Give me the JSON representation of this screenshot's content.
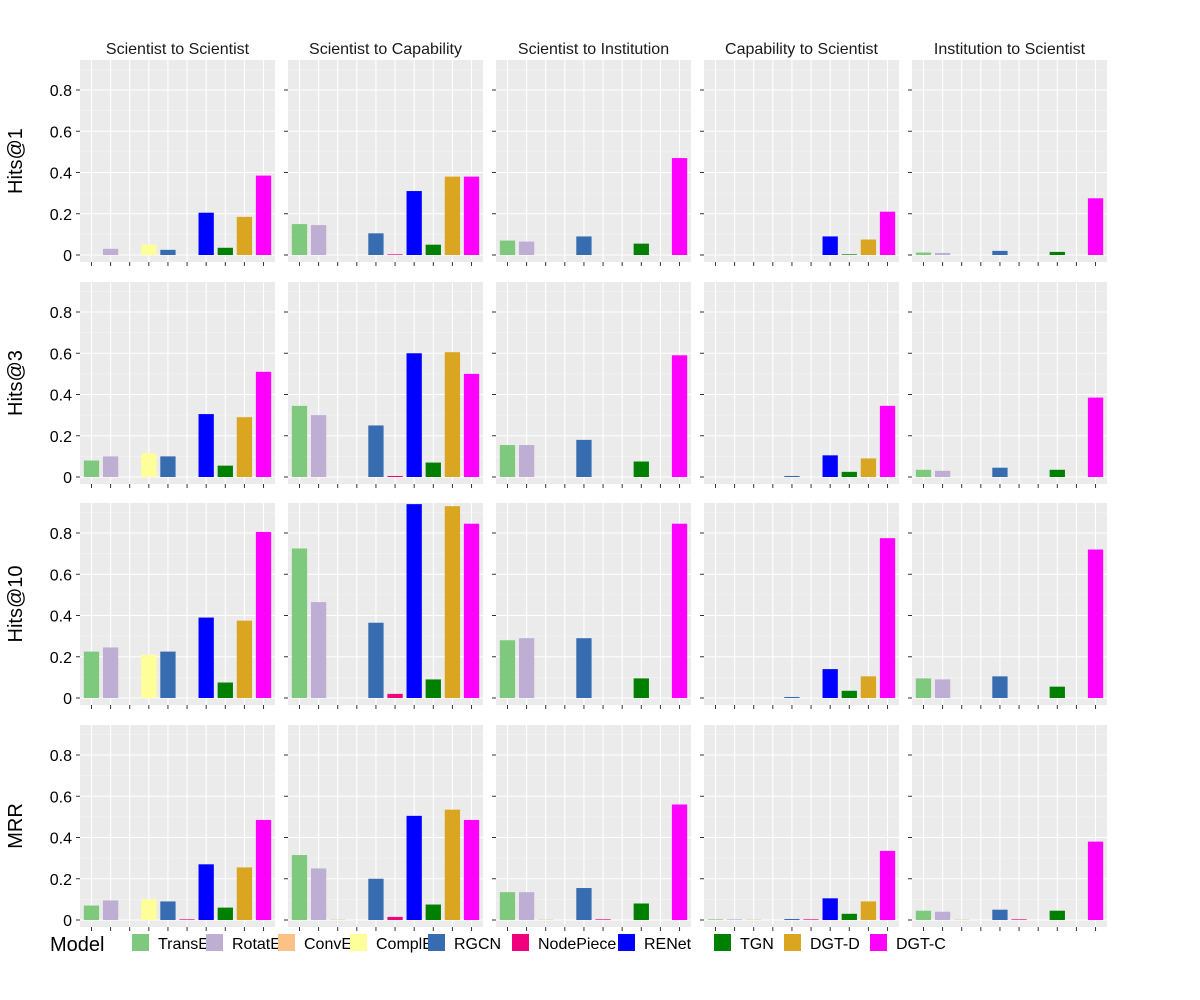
{
  "chart_data": {
    "type": "bar",
    "facet_columns": [
      "Scientist to Scientist",
      "Scientist to Capability",
      "Scientist to Institution",
      "Capability to Scientist",
      "Institution to Scientist"
    ],
    "facet_rows": [
      "Hits@1",
      "Hits@3",
      "Hits@10",
      "MRR"
    ],
    "categories": [
      "TransE",
      "RotatE",
      "ConvE",
      "ComplEx",
      "RGCN",
      "NodePiece",
      "RENet",
      "TGN",
      "DGT-D",
      "DGT-C"
    ],
    "colors": [
      "#7fc97f",
      "#beaed4",
      "#fdc086",
      "#ffff99",
      "#386cb0",
      "#f0027f",
      "#0000ff",
      "#008000",
      "#daa520",
      "#ff00ff"
    ],
    "ylim": [
      0,
      0.945
    ],
    "yticks": [
      "0",
      "0.2",
      "0.4",
      "0.6",
      "0.8"
    ],
    "grid": true,
    "legend": {
      "title": "Model",
      "position": "bottom"
    },
    "values": {
      "Hits@1": [
        [
          0,
          0.03,
          0,
          0.05,
          0.025,
          0,
          0.205,
          0.035,
          0.185,
          0.385
        ],
        [
          0.15,
          0.145,
          0,
          0,
          0.105,
          0.003,
          0.31,
          0.05,
          0.38,
          0.38
        ],
        [
          0.07,
          0.065,
          0,
          0,
          0.09,
          0,
          0,
          0.055,
          0,
          0.47
        ],
        [
          0,
          0,
          0,
          0,
          0,
          0,
          0.09,
          0.003,
          0.075,
          0.21
        ],
        [
          0.012,
          0.01,
          0,
          0,
          0.02,
          0,
          0,
          0.015,
          0,
          0.275
        ]
      ],
      "Hits@3": [
        [
          0.08,
          0.1,
          0,
          0.115,
          0.1,
          0,
          0.305,
          0.055,
          0.29,
          0.51
        ],
        [
          0.345,
          0.3,
          0,
          0,
          0.25,
          0.005,
          0.6,
          0.07,
          0.605,
          0.5
        ],
        [
          0.155,
          0.155,
          0,
          0,
          0.18,
          0,
          0,
          0.075,
          0,
          0.59
        ],
        [
          0,
          0,
          0,
          0,
          0.005,
          0,
          0.105,
          0.025,
          0.09,
          0.345
        ],
        [
          0.035,
          0.03,
          0,
          0,
          0.045,
          0,
          0,
          0.035,
          0,
          0.385
        ]
      ],
      "Hits@10": [
        [
          0.225,
          0.245,
          0,
          0.21,
          0.225,
          0,
          0.39,
          0.075,
          0.375,
          0.805
        ],
        [
          0.725,
          0.465,
          0,
          0,
          0.365,
          0.02,
          0.94,
          0.09,
          0.93,
          0.845
        ],
        [
          0.28,
          0.29,
          0,
          0,
          0.29,
          0,
          0,
          0.095,
          0,
          0.845
        ],
        [
          0,
          0,
          0,
          0,
          0.005,
          0,
          0.14,
          0.035,
          0.105,
          0.775
        ],
        [
          0.095,
          0.09,
          0,
          0,
          0.105,
          0,
          0,
          0.055,
          0,
          0.72
        ]
      ],
      "MRR": [
        [
          0.07,
          0.095,
          0,
          0.1,
          0.09,
          0.003,
          0.27,
          0.06,
          0.255,
          0.485
        ],
        [
          0.315,
          0.25,
          0.002,
          0,
          0.2,
          0.015,
          0.505,
          0.075,
          0.535,
          0.485
        ],
        [
          0.135,
          0.135,
          0.002,
          0,
          0.155,
          0.003,
          0,
          0.08,
          0,
          0.56
        ],
        [
          0.003,
          0.003,
          0.002,
          0,
          0.005,
          0.003,
          0.105,
          0.03,
          0.09,
          0.335
        ],
        [
          0.045,
          0.04,
          0.002,
          0,
          0.05,
          0.003,
          0,
          0.045,
          0,
          0.38
        ]
      ]
    }
  }
}
